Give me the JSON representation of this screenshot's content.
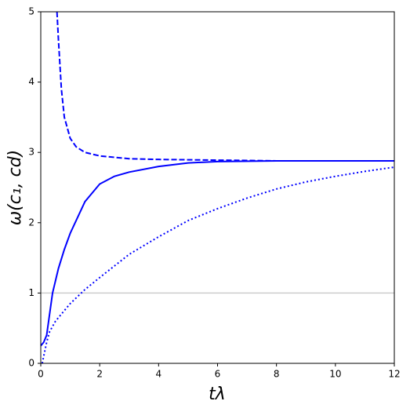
{
  "chart_data": {
    "type": "line",
    "x_label": "tλ",
    "y_label": "ω(c₁, cd)",
    "xlim": [
      0,
      12
    ],
    "ylim": [
      0,
      5
    ],
    "xticks": [
      0,
      2,
      4,
      6,
      8,
      10,
      12
    ],
    "yticks": [
      0,
      1,
      2,
      3,
      4,
      5
    ],
    "reference_line": {
      "value": 1,
      "color": "#cccccc"
    },
    "series": [
      {
        "color": "#0000ff",
        "style": "solid",
        "x": [
          0,
          0.1,
          0.2,
          0.3,
          0.4,
          0.6,
          0.8,
          1,
          1.5,
          2,
          2.5,
          3,
          4,
          5,
          6,
          8,
          10,
          12
        ],
        "values": [
          0.25,
          0.3,
          0.4,
          0.7,
          1.0,
          1.35,
          1.62,
          1.85,
          2.3,
          2.55,
          2.66,
          2.72,
          2.8,
          2.85,
          2.87,
          2.88,
          2.88,
          2.88
        ]
      },
      {
        "color": "#0000ff",
        "style": "dashed",
        "x": [
          0.55,
          0.6,
          0.7,
          0.8,
          1,
          1.2,
          1.5,
          2,
          3,
          4,
          6,
          8,
          10,
          12
        ],
        "values": [
          5,
          4.6,
          3.9,
          3.5,
          3.2,
          3.08,
          3.0,
          2.95,
          2.91,
          2.9,
          2.89,
          2.88,
          2.88,
          2.88
        ]
      },
      {
        "color": "#0000ff",
        "style": "dotted",
        "x": [
          0.05,
          0.1,
          0.2,
          0.3,
          0.5,
          0.8,
          1,
          1.5,
          2,
          3,
          4,
          5,
          6,
          7,
          8,
          9,
          10,
          11,
          12
        ],
        "values": [
          0,
          0.1,
          0.3,
          0.45,
          0.6,
          0.75,
          0.85,
          1.05,
          1.22,
          1.55,
          1.8,
          2.03,
          2.2,
          2.35,
          2.48,
          2.58,
          2.66,
          2.73,
          2.79
        ]
      }
    ]
  }
}
